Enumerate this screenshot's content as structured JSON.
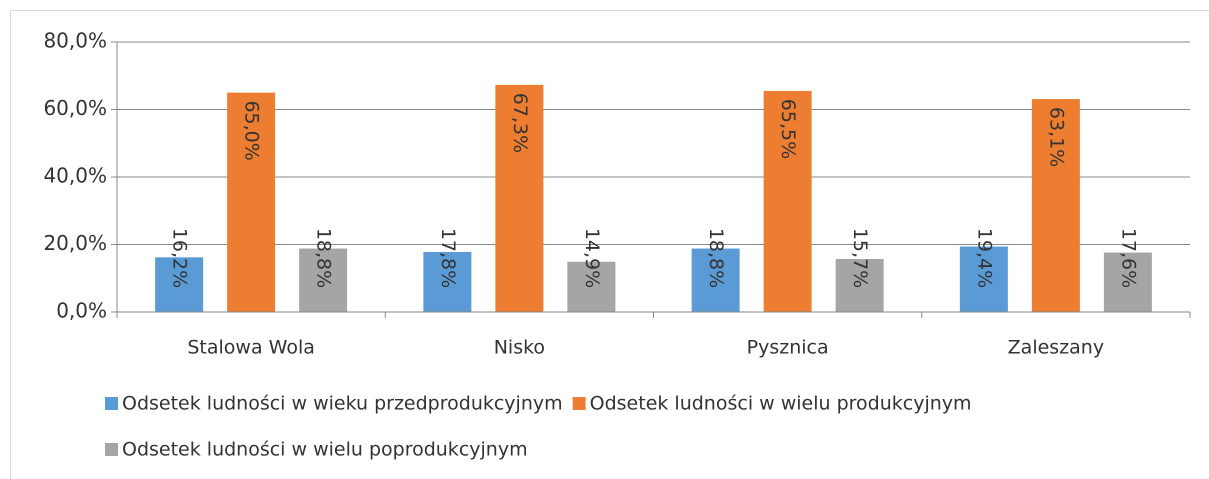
{
  "chart_data": {
    "type": "bar",
    "categories": [
      "Stalowa Wola",
      "Nisko",
      "Pysznica",
      "Zaleszany"
    ],
    "series": [
      {
        "name": "Odsetek ludności w wieku przedprodukcyjnym",
        "color": "#5b9bd5",
        "values": [
          16.2,
          17.8,
          18.8,
          19.4
        ],
        "value_labels": [
          "16,2%",
          "17,8%",
          "18,8%",
          "19,4%"
        ]
      },
      {
        "name": "Odsetek ludności w wielu produkcyjnym",
        "color": "#ed7d31",
        "values": [
          65.0,
          67.3,
          65.5,
          63.1
        ],
        "value_labels": [
          "65,0%",
          "67,3%",
          "65,5%",
          "63,1%"
        ]
      },
      {
        "name": "Odsetek ludności w wielu poprodukcyjnym",
        "color": "#a5a5a5",
        "values": [
          18.8,
          14.9,
          15.7,
          17.6
        ],
        "value_labels": [
          "18,8%",
          "14,9%",
          "15,7%",
          "17,6%"
        ]
      }
    ],
    "ylim": [
      0,
      80
    ],
    "yticks": [
      {
        "value": 0,
        "label": "0,0%"
      },
      {
        "value": 20,
        "label": "20,0%"
      },
      {
        "value": 40,
        "label": "40,0%"
      },
      {
        "value": 60,
        "label": "60,0%"
      },
      {
        "value": 80,
        "label": "80,0%"
      }
    ],
    "grid": true,
    "legend": "bottom"
  }
}
